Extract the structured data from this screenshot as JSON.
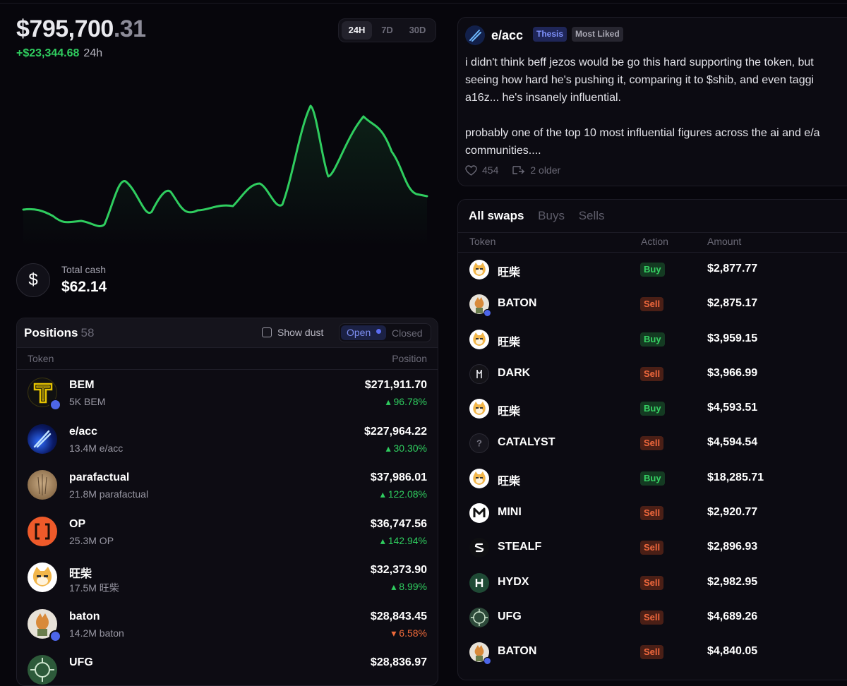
{
  "portfolio": {
    "balance_main": "$795,700",
    "balance_cents": ".31",
    "change": "+$23,344.68",
    "change_period": "24h",
    "ranges": [
      "24H",
      "7D",
      "30D"
    ],
    "active_range": "24H",
    "line_color": "#2fcd5f"
  },
  "cash": {
    "label": "Total cash",
    "value": "$62.14",
    "symbol": "$"
  },
  "positions": {
    "title": "Positions",
    "count": "58",
    "show_dust": "Show dust",
    "open": "Open",
    "closed": "Closed",
    "col_token": "Token",
    "col_position": "Position",
    "rows": [
      {
        "name": "BEM",
        "sub": "5K BEM",
        "value": "$271,911.70",
        "pct": "96.78%",
        "dir": "up",
        "icon": "bem-logo"
      },
      {
        "name": "e/acc",
        "sub": "13.4M e/acc",
        "value": "$227,964.22",
        "pct": "30.30%",
        "dir": "up",
        "icon": "eacc-logo"
      },
      {
        "name": "parafactual",
        "sub": "21.8M parafactual",
        "value": "$37,986.01",
        "pct": "122.08%",
        "dir": "up",
        "icon": "parafactual-logo"
      },
      {
        "name": "OP",
        "sub": "25.3M OP",
        "value": "$36,747.56",
        "pct": "142.94%",
        "dir": "up",
        "icon": "op-logo"
      },
      {
        "name": "旺柴",
        "sub": "17.5M 旺柴",
        "value": "$32,373.90",
        "pct": "8.99%",
        "dir": "up",
        "icon": "shiba-logo"
      },
      {
        "name": "baton",
        "sub": "14.2M baton",
        "value": "$28,843.45",
        "pct": "6.58%",
        "dir": "down",
        "icon": "baton-logo"
      },
      {
        "name": "UFG",
        "sub": "",
        "value": "$28,836.97",
        "pct": "",
        "dir": "up",
        "icon": "ufg-logo"
      }
    ]
  },
  "post": {
    "author": "e/acc",
    "tags": [
      "Thesis",
      "Most Liked"
    ],
    "lines_p1": [
      "i didn't think beff jezos would be go this hard supporting the token, but",
      "seeing how hard he's pushing it, comparing it to $shib, and even taggi",
      "a16z... he's insanely influential."
    ],
    "lines_p2": [
      "probably one of the top 10 most influential figures across the ai and e/a",
      "communities...."
    ],
    "likes": "454",
    "older": "2 older"
  },
  "swaps": {
    "tabs": [
      "All swaps",
      "Buys",
      "Sells"
    ],
    "active_tab": "All swaps",
    "col_token": "Token",
    "col_action": "Action",
    "col_amount": "Amount",
    "rows": [
      {
        "token": "旺柴",
        "action": "Buy",
        "amount": "$2,877.77",
        "icon": "shiba-icon"
      },
      {
        "token": "BATON",
        "action": "Sell",
        "amount": "$2,875.17",
        "icon": "baton-icon"
      },
      {
        "token": "旺柴",
        "action": "Buy",
        "amount": "$3,959.15",
        "icon": "shiba-icon"
      },
      {
        "token": "DARK",
        "action": "Sell",
        "amount": "$3,966.99",
        "icon": "dark-icon"
      },
      {
        "token": "旺柴",
        "action": "Buy",
        "amount": "$4,593.51",
        "icon": "shiba-icon"
      },
      {
        "token": "CATALYST",
        "action": "Sell",
        "amount": "$4,594.54",
        "icon": "question-icon"
      },
      {
        "token": "旺柴",
        "action": "Buy",
        "amount": "$18,285.71",
        "icon": "shiba-icon"
      },
      {
        "token": "MINI",
        "action": "Sell",
        "amount": "$2,920.77",
        "icon": "mini-icon"
      },
      {
        "token": "STEALF",
        "action": "Sell",
        "amount": "$2,896.93",
        "icon": "stealf-icon"
      },
      {
        "token": "HYDX",
        "action": "Sell",
        "amount": "$2,982.95",
        "icon": "hydx-icon"
      },
      {
        "token": "UFG",
        "action": "Sell",
        "amount": "$4,689.26",
        "icon": "ufg-icon"
      },
      {
        "token": "BATON",
        "action": "Sell",
        "amount": "$4,840.05",
        "icon": "baton-icon"
      }
    ]
  }
}
